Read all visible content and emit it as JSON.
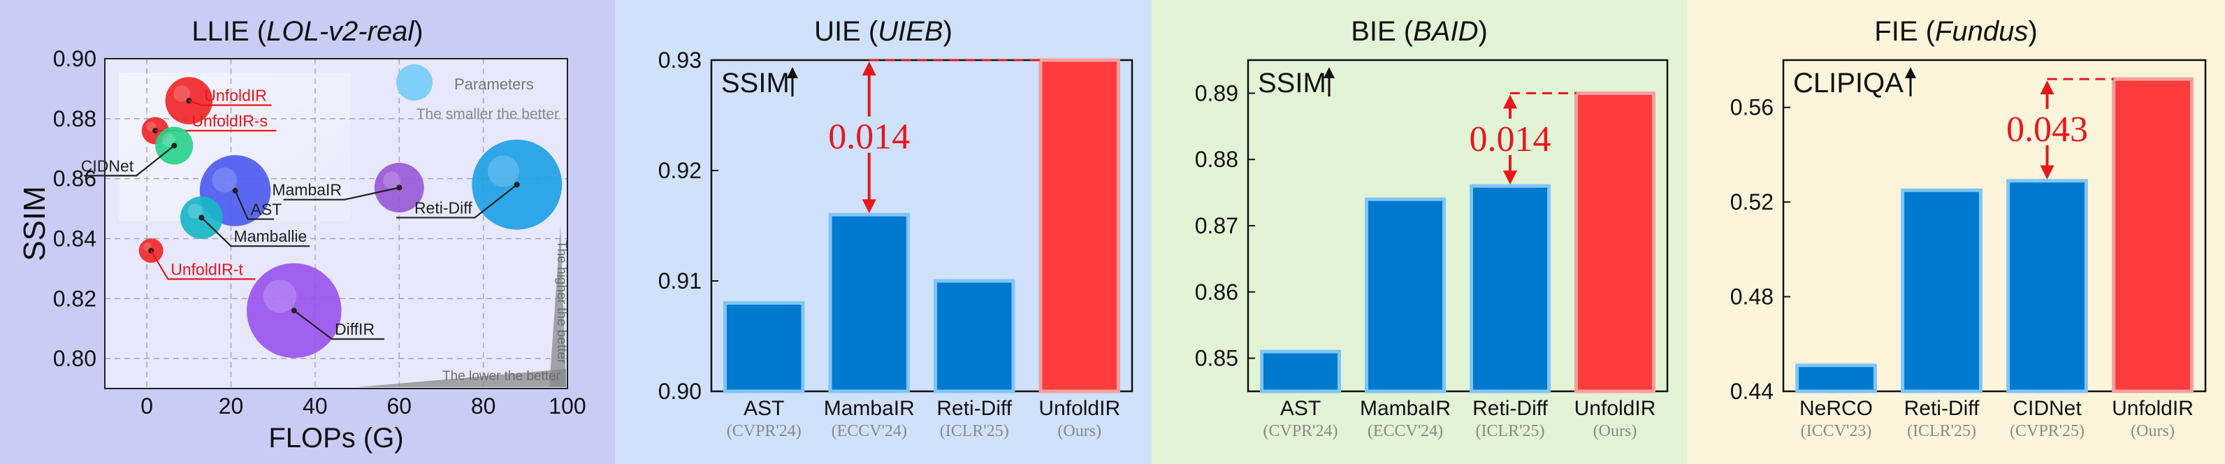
{
  "chart_data": [
    {
      "type": "scatter",
      "title": "LLIE",
      "title_dataset": "LOL-v2-real",
      "xlabel": "FLOPs (G)",
      "ylabel": "SSIM",
      "xlim": [
        -10,
        100
      ],
      "ylim": [
        0.79,
        0.9
      ],
      "xticks": [
        0,
        20,
        40,
        60,
        80,
        100
      ],
      "yticks": [
        0.8,
        0.82,
        0.84,
        0.86,
        0.88,
        0.9
      ],
      "xtick_labels": [
        "0",
        "20",
        "40",
        "60",
        "80",
        "100"
      ],
      "ytick_labels": [
        "0.80",
        "0.82",
        "0.84",
        "0.86",
        "0.88",
        "0.90"
      ],
      "grid": true,
      "background": "#c9cdf6",
      "legend": {
        "label": "Parameters",
        "note": "The smaller the better",
        "color": "#7fd0f8"
      },
      "arrow_notes": {
        "higher": "The higher the better",
        "lower": "The lower the better"
      },
      "points": [
        {
          "name": "UnfoldIR",
          "x": 10,
          "y": 0.886,
          "size": 0.7,
          "color": "#f0282a",
          "highlight": true,
          "label_dx": 3,
          "label_dy": -0.0015
        },
        {
          "name": "UnfoldIR-s",
          "x": 2,
          "y": 0.876,
          "size": 0.28,
          "color": "#f0282a",
          "highlight": true,
          "label_dx": 8,
          "label_dy": 0.0
        },
        {
          "name": "CIDNet",
          "x": 6.5,
          "y": 0.871,
          "size": 0.5,
          "color": "#28d38a",
          "highlight": false,
          "label_dx": -9,
          "label_dy": -0.01
        },
        {
          "name": "AST",
          "x": 21,
          "y": 0.856,
          "size": 1.2,
          "color": "#4d5cf0",
          "highlight": false,
          "label_dx": 3,
          "label_dy": -0.0095
        },
        {
          "name": "MambaIR",
          "x": 60,
          "y": 0.857,
          "size": 0.75,
          "color": "#9a59d6",
          "highlight": false,
          "label_dx": -13,
          "label_dy": -0.004
        },
        {
          "name": "Reti-Diff",
          "x": 88,
          "y": 0.858,
          "size": 1.6,
          "color": "#1f9fe6",
          "highlight": false,
          "label_dx": -10,
          "label_dy": -0.011
        },
        {
          "name": "Mamballie",
          "x": 13,
          "y": 0.847,
          "size": 0.6,
          "color": "#18b6c8",
          "highlight": false,
          "label_dx": 7,
          "label_dy": -0.0095
        },
        {
          "name": "UnfoldIR-t",
          "x": 1,
          "y": 0.836,
          "size": 0.22,
          "color": "#f0282a",
          "highlight": true,
          "label_dx": 4,
          "label_dy": -0.0095
        },
        {
          "name": "DiffIR",
          "x": 35,
          "y": 0.816,
          "size": 1.7,
          "color": "#9a55ee",
          "highlight": false,
          "label_dx": 9,
          "label_dy": -0.0095
        }
      ]
    },
    {
      "type": "bar",
      "title": "UIE",
      "title_dataset": "UIEB",
      "metric": "SSIM",
      "background": "#cfe1fb",
      "ylim": [
        0.9,
        0.93
      ],
      "yticks": [
        0.9,
        0.91,
        0.92,
        0.93
      ],
      "ytick_labels": [
        "0.90",
        "0.91",
        "0.92",
        "0.93"
      ],
      "categories": [
        "AST",
        "MambaIR",
        "Reti-Diff",
        "UnfoldIR"
      ],
      "venues": [
        "(CVPR'24)",
        "(ECCV'24)",
        "(ICLR'25)",
        "(Ours)"
      ],
      "values": [
        0.908,
        0.916,
        0.91,
        0.93
      ],
      "colors": [
        "#0079cf",
        "#0079cf",
        "#0079cf",
        "#ff3b3b"
      ],
      "edge_colors": [
        "#7fc6f6",
        "#7fc6f6",
        "#7fc6f6",
        "#f6a0a0"
      ],
      "annotation": {
        "text": "0.014",
        "from_index": 1,
        "to_index": 3,
        "from_value": 0.916,
        "to_value": 0.93
      }
    },
    {
      "type": "bar",
      "title": "BIE",
      "title_dataset": "BAID",
      "metric": "SSIM",
      "background": "#e3f3d6",
      "ylim": [
        0.845,
        0.895
      ],
      "yticks": [
        0.85,
        0.86,
        0.87,
        0.88,
        0.89
      ],
      "ytick_labels": [
        "0.85",
        "0.86",
        "0.87",
        "0.88",
        "0.89"
      ],
      "categories": [
        "AST",
        "MambaIR",
        "Reti-Diff",
        "UnfoldIR"
      ],
      "venues": [
        "(CVPR'24)",
        "(ECCV'24)",
        "(ICLR'25)",
        "(Ours)"
      ],
      "values": [
        0.851,
        0.874,
        0.876,
        0.89
      ],
      "colors": [
        "#0079cf",
        "#0079cf",
        "#0079cf",
        "#ff3b3b"
      ],
      "edge_colors": [
        "#7fc6f6",
        "#7fc6f6",
        "#7fc6f6",
        "#f6a0a0"
      ],
      "annotation": {
        "text": "0.014",
        "from_index": 2,
        "to_index": 3,
        "from_value": 0.876,
        "to_value": 0.89
      }
    },
    {
      "type": "bar",
      "title": "FIE",
      "title_dataset": "Fundus",
      "metric": "CLIPIQA",
      "background": "#fcf4db",
      "ylim": [
        0.44,
        0.58
      ],
      "yticks": [
        0.44,
        0.48,
        0.52,
        0.56
      ],
      "ytick_labels": [
        "0.44",
        "0.48",
        "0.52",
        "0.56"
      ],
      "categories": [
        "NeRCO",
        "Reti-Diff",
        "CIDNet",
        "UnfoldIR"
      ],
      "venues": [
        "(ICCV'23)",
        "(ICLR'25)",
        "(CVPR'25)",
        "(Ours)"
      ],
      "values": [
        0.451,
        0.525,
        0.529,
        0.572
      ],
      "colors": [
        "#0079cf",
        "#0079cf",
        "#0079cf",
        "#ff3b3b"
      ],
      "edge_colors": [
        "#7fc6f6",
        "#7fc6f6",
        "#7fc6f6",
        "#f6a0a0"
      ],
      "annotation": {
        "text": "0.043",
        "from_index": 2,
        "to_index": 3,
        "from_value": 0.529,
        "to_value": 0.572
      }
    }
  ]
}
